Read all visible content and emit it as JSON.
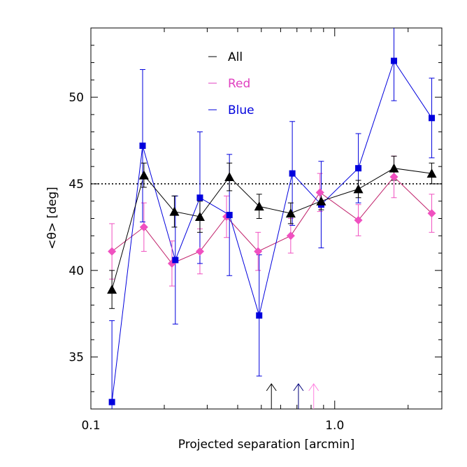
{
  "chart_data": {
    "type": "scatter",
    "xscale": "log",
    "xlim": [
      0.1,
      2.75
    ],
    "ylim": [
      32.0,
      54.0
    ],
    "xlabel": "Projected separation [arcmin]",
    "ylabel": "<θ> [deg]",
    "x_ticks": [
      {
        "value": 0.1,
        "label": "0.1"
      },
      {
        "value": 1.0,
        "label": "1.0"
      }
    ],
    "y_ticks": [
      {
        "value": 35,
        "label": "35"
      },
      {
        "value": 40,
        "label": "40"
      },
      {
        "value": 45,
        "label": "45"
      },
      {
        "value": 50,
        "label": "50"
      }
    ],
    "reference_line": {
      "y": 45,
      "style": "dotted",
      "color": "#000000"
    },
    "legend": {
      "placement": "top-left",
      "entries": [
        {
          "label": "All",
          "color": "#000000"
        },
        {
          "label": "Red",
          "color": "#e040c0"
        },
        {
          "label": "Blue",
          "color": "#0000dd"
        }
      ]
    },
    "series": [
      {
        "name": "All",
        "marker": "triangle",
        "color": "#000000",
        "line_color": "#000000",
        "x": [
          0.122,
          0.165,
          0.22,
          0.28,
          0.37,
          0.49,
          0.66,
          0.88,
          1.25,
          1.75,
          2.5
        ],
        "y": [
          38.9,
          45.5,
          43.4,
          43.1,
          45.4,
          43.7,
          43.3,
          44.0,
          44.7,
          45.9,
          45.6
        ],
        "yerr": [
          1.1,
          0.7,
          0.9,
          0.9,
          0.8,
          0.7,
          0.6,
          0.5,
          0.5,
          0.7,
          0.6
        ]
      },
      {
        "name": "Red",
        "marker": "diamond",
        "color": "#f050c0",
        "line_color": "#c0206a",
        "x": [
          0.122,
          0.165,
          0.215,
          0.28,
          0.36,
          0.485,
          0.66,
          0.87,
          1.25,
          1.75,
          2.5
        ],
        "y": [
          41.1,
          42.5,
          40.4,
          41.1,
          43.1,
          41.1,
          42.0,
          44.5,
          42.9,
          45.4,
          43.3
        ],
        "yerr": [
          1.6,
          1.4,
          1.3,
          1.3,
          1.2,
          1.1,
          1.0,
          1.1,
          0.9,
          1.2,
          1.1
        ]
      },
      {
        "name": "Blue",
        "marker": "square",
        "color": "#0000dd",
        "line_color": "#0000dd",
        "x": [
          0.122,
          0.163,
          0.222,
          0.28,
          0.37,
          0.49,
          0.67,
          0.88,
          1.25,
          1.75,
          2.5
        ],
        "y": [
          32.4,
          47.2,
          40.6,
          44.2,
          43.2,
          37.4,
          45.6,
          43.8,
          45.9,
          52.1,
          48.8
        ],
        "yerr": [
          4.7,
          4.4,
          3.7,
          3.8,
          3.5,
          3.5,
          3.0,
          2.5,
          2.0,
          2.3,
          2.3
        ]
      }
    ],
    "marker_arrows": [
      {
        "x": 0.55,
        "color": "#000000"
      },
      {
        "x": 0.71,
        "color": "#00007a"
      },
      {
        "x": 0.82,
        "color": "#ff80e0"
      }
    ]
  }
}
